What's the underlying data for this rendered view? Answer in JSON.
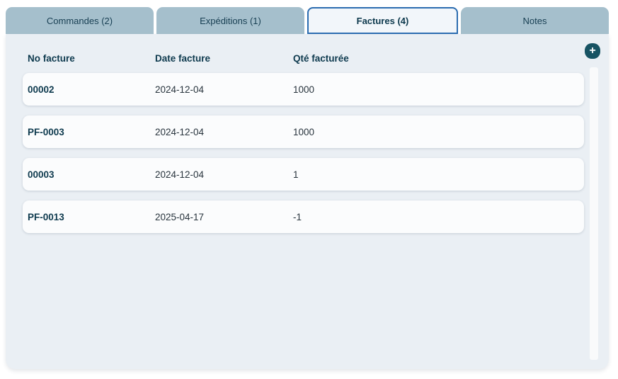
{
  "tabs": [
    {
      "label": "Commandes (2)",
      "active": false
    },
    {
      "label": "Expéditions (1)",
      "active": false
    },
    {
      "label": "Factures (4)",
      "active": true
    },
    {
      "label": "Notes",
      "active": false
    }
  ],
  "actions": {
    "add_label": "+"
  },
  "table": {
    "columns": [
      "No facture",
      "Date facture",
      "Qté facturée"
    ],
    "rows": [
      {
        "no": "00002",
        "date": "2024-12-04",
        "qty": "1000"
      },
      {
        "no": "PF-0003",
        "date": "2024-12-04",
        "qty": "1000"
      },
      {
        "no": "00003",
        "date": "2024-12-04",
        "qty": "1"
      },
      {
        "no": "PF-0013",
        "date": "2025-04-17",
        "qty": "-1"
      }
    ]
  },
  "colors": {
    "tab_inactive_bg": "#a5bfcc",
    "tab_active_bg": "#f2f6fa",
    "tab_active_border": "#2b6cb0",
    "panel_bg": "#eaeff4",
    "row_bg": "#fbfcfd",
    "accent_dark_teal": "#175363",
    "text_dark": "#0e3a4e"
  }
}
